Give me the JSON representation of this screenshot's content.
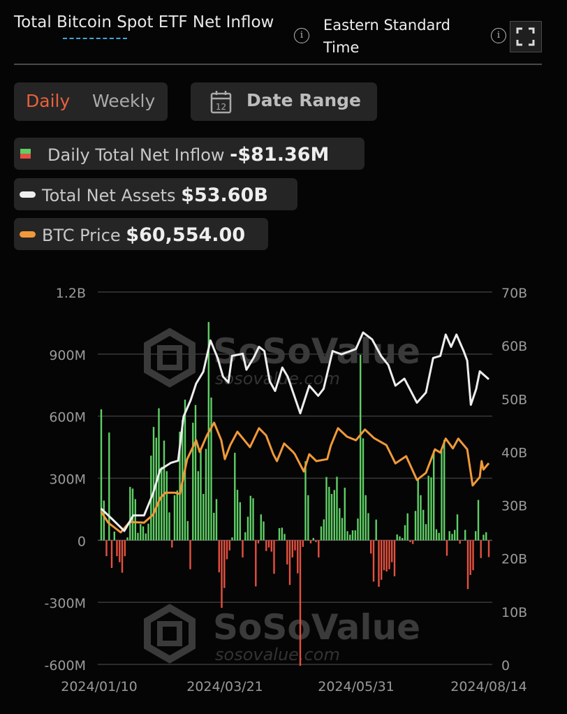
{
  "header": {
    "title": "Total Bitcoin Spot ETF Net Inflow",
    "timezone": "Eastern Standard Time",
    "info_icon": "info-circle-icon",
    "fullscreen_icon": "fullscreen-icon"
  },
  "controls": {
    "daily_label": "Daily",
    "weekly_label": "Weekly",
    "selected": "Daily",
    "date_range_label": "Date Range",
    "calendar_icon_text": "12"
  },
  "legend": [
    {
      "label": "Daily Total Net Inflow",
      "value": "-$81.36M"
    },
    {
      "label": "Total Net Assets",
      "value": "$53.60B"
    },
    {
      "label": "BTC Price",
      "value": "$60,554.00"
    }
  ],
  "colors": {
    "inflow": "#5fcf65",
    "outflow": "#e5503f",
    "net_assets": "#eeeeee",
    "btc_price": "#f0993a",
    "selected_tab": "#e8603c"
  },
  "watermark": {
    "brand": "SoSoValue",
    "url": "sosovalue.com"
  },
  "chart_data": {
    "type": "bar+line",
    "grid": true,
    "x_ticks": [
      "2024/01/10",
      "2024/03/21",
      "2024/05/31",
      "2024/08/14"
    ],
    "y_left": {
      "ticks": [
        "1.2B",
        "900M",
        "600M",
        "300M",
        "0",
        "-300M",
        "-600M"
      ],
      "range_musd": [
        -600,
        1200
      ]
    },
    "y_right": {
      "ticks": [
        "70B",
        "60B",
        "50B",
        "40B",
        "30B",
        "20B",
        "10B",
        "0"
      ],
      "range_busd": [
        0,
        70
      ]
    },
    "daily_net_inflow_musd": [
      633,
      192,
      -77,
      521,
      -134,
      42,
      -77,
      -106,
      -157,
      -77,
      14,
      258,
      250,
      199,
      36,
      78,
      67,
      33,
      80,
      409,
      548,
      496,
      638,
      354,
      482,
      334,
      135,
      -35,
      218,
      241,
      525,
      582,
      680,
      93,
      -140,
      568,
      654,
      334,
      445,
      224,
      442,
      1055,
      690,
      133,
      199,
      -155,
      -327,
      -231,
      -92,
      -49,
      14,
      423,
      244,
      184,
      -83,
      39,
      114,
      215,
      203,
      -223,
      -15,
      125,
      91,
      -52,
      -35,
      -55,
      -162,
      -3,
      59,
      61,
      31,
      -117,
      -216,
      -83,
      -49,
      -160,
      -607,
      -32,
      382,
      218,
      -15,
      11,
      -9,
      -83,
      67,
      101,
      306,
      258,
      224,
      243,
      307,
      155,
      108,
      254,
      44,
      27,
      48,
      48,
      105,
      896,
      493,
      218,
      131,
      -64,
      -200,
      100,
      -225,
      -191,
      -145,
      -151,
      -140,
      -106,
      -174,
      28,
      19,
      11,
      73,
      130,
      -9,
      -18,
      142,
      295,
      218,
      147,
      78,
      312,
      304,
      434,
      53,
      36,
      434,
      485,
      -75,
      44,
      31,
      50,
      125,
      -17,
      0,
      50,
      -236,
      -168,
      -145,
      44,
      195,
      -86,
      27,
      39,
      -81.36
    ],
    "total_net_assets_busd": [
      [
        "2024-01-11",
        29.3
      ],
      [
        "2024-01-17",
        27.4
      ],
      [
        "2024-01-24",
        25.1
      ],
      [
        "2024-01-29",
        28.0
      ],
      [
        "2024-02-04",
        28.0
      ],
      [
        "2024-02-09",
        32.1
      ],
      [
        "2024-02-13",
        36.6
      ],
      [
        "2024-02-19",
        37.9
      ],
      [
        "2024-02-23",
        38.3
      ],
      [
        "2024-02-26",
        46.6
      ],
      [
        "2024-03-01",
        49.7
      ],
      [
        "2024-03-04",
        52.8
      ],
      [
        "2024-03-08",
        55.0
      ],
      [
        "2024-03-12",
        60.9
      ],
      [
        "2024-03-16",
        57.6
      ],
      [
        "2024-03-19",
        54.1
      ],
      [
        "2024-03-22",
        53.0
      ],
      [
        "2024-03-24",
        58.0
      ],
      [
        "2024-03-30",
        58.4
      ],
      [
        "2024-04-01",
        55.4
      ],
      [
        "2024-04-05",
        57.6
      ],
      [
        "2024-04-08",
        59.7
      ],
      [
        "2024-04-11",
        58.9
      ],
      [
        "2024-04-14",
        53.2
      ],
      [
        "2024-04-17",
        51.4
      ],
      [
        "2024-04-21",
        55.8
      ],
      [
        "2024-04-24",
        54.1
      ],
      [
        "2024-05-01",
        47.2
      ],
      [
        "2024-05-06",
        52.4
      ],
      [
        "2024-05-11",
        50.5
      ],
      [
        "2024-05-14",
        51.8
      ],
      [
        "2024-05-19",
        58.9
      ],
      [
        "2024-05-24",
        58.3
      ],
      [
        "2024-06-01",
        59.3
      ],
      [
        "2024-06-05",
        62.4
      ],
      [
        "2024-06-10",
        61.1
      ],
      [
        "2024-06-15",
        58.0
      ],
      [
        "2024-06-19",
        56.3
      ],
      [
        "2024-06-23",
        52.4
      ],
      [
        "2024-06-28",
        53.7
      ],
      [
        "2024-07-05",
        49.2
      ],
      [
        "2024-07-10",
        51.1
      ],
      [
        "2024-07-14",
        57.6
      ],
      [
        "2024-07-18",
        58.0
      ],
      [
        "2024-07-21",
        62.0
      ],
      [
        "2024-07-24",
        59.7
      ],
      [
        "2024-07-27",
        62.0
      ],
      [
        "2024-07-31",
        58.9
      ],
      [
        "2024-08-02",
        57.1
      ],
      [
        "2024-08-04",
        48.8
      ],
      [
        "2024-08-07",
        51.8
      ],
      [
        "2024-08-09",
        55.1
      ],
      [
        "2024-08-14",
        53.6
      ]
    ],
    "btc_price_usd": [
      [
        "2024-01-11",
        45750
      ],
      [
        "2024-01-15",
        42300
      ],
      [
        "2024-01-22",
        39300
      ],
      [
        "2024-01-27",
        42500
      ],
      [
        "2024-02-04",
        42300
      ],
      [
        "2024-02-09",
        44700
      ],
      [
        "2024-02-13",
        49800
      ],
      [
        "2024-02-16",
        51500
      ],
      [
        "2024-02-21",
        51500
      ],
      [
        "2024-02-24",
        51100
      ],
      [
        "2024-02-28",
        61800
      ],
      [
        "2024-03-04",
        67600
      ],
      [
        "2024-03-06",
        64000
      ],
      [
        "2024-03-10",
        69100
      ],
      [
        "2024-03-14",
        73000
      ],
      [
        "2024-03-18",
        67600
      ],
      [
        "2024-03-20",
        61800
      ],
      [
        "2024-03-23",
        66100
      ],
      [
        "2024-03-27",
        70200
      ],
      [
        "2024-04-03",
        65500
      ],
      [
        "2024-04-08",
        71300
      ],
      [
        "2024-04-12",
        69100
      ],
      [
        "2024-04-16",
        63300
      ],
      [
        "2024-04-18",
        61200
      ],
      [
        "2024-04-22",
        66600
      ],
      [
        "2024-04-27",
        64000
      ],
      [
        "2024-04-28",
        63300
      ],
      [
        "2024-05-03",
        58000
      ],
      [
        "2024-05-06",
        63300
      ],
      [
        "2024-05-10",
        61200
      ],
      [
        "2024-05-16",
        61800
      ],
      [
        "2024-05-18",
        65900
      ],
      [
        "2024-05-22",
        71300
      ],
      [
        "2024-05-27",
        68700
      ],
      [
        "2024-06-01",
        67600
      ],
      [
        "2024-06-06",
        70900
      ],
      [
        "2024-06-11",
        68300
      ],
      [
        "2024-06-18",
        66100
      ],
      [
        "2024-06-23",
        60500
      ],
      [
        "2024-06-29",
        62700
      ],
      [
        "2024-07-05",
        55400
      ],
      [
        "2024-07-10",
        57600
      ],
      [
        "2024-07-15",
        64800
      ],
      [
        "2024-07-18",
        63800
      ],
      [
        "2024-07-21",
        68100
      ],
      [
        "2024-07-25",
        65100
      ],
      [
        "2024-07-28",
        68100
      ],
      [
        "2024-08-02",
        64800
      ],
      [
        "2024-08-05",
        53700
      ],
      [
        "2024-08-09",
        56300
      ],
      [
        "2024-08-10",
        61200
      ],
      [
        "2024-08-11",
        58600
      ],
      [
        "2024-08-14",
        60554
      ]
    ]
  }
}
